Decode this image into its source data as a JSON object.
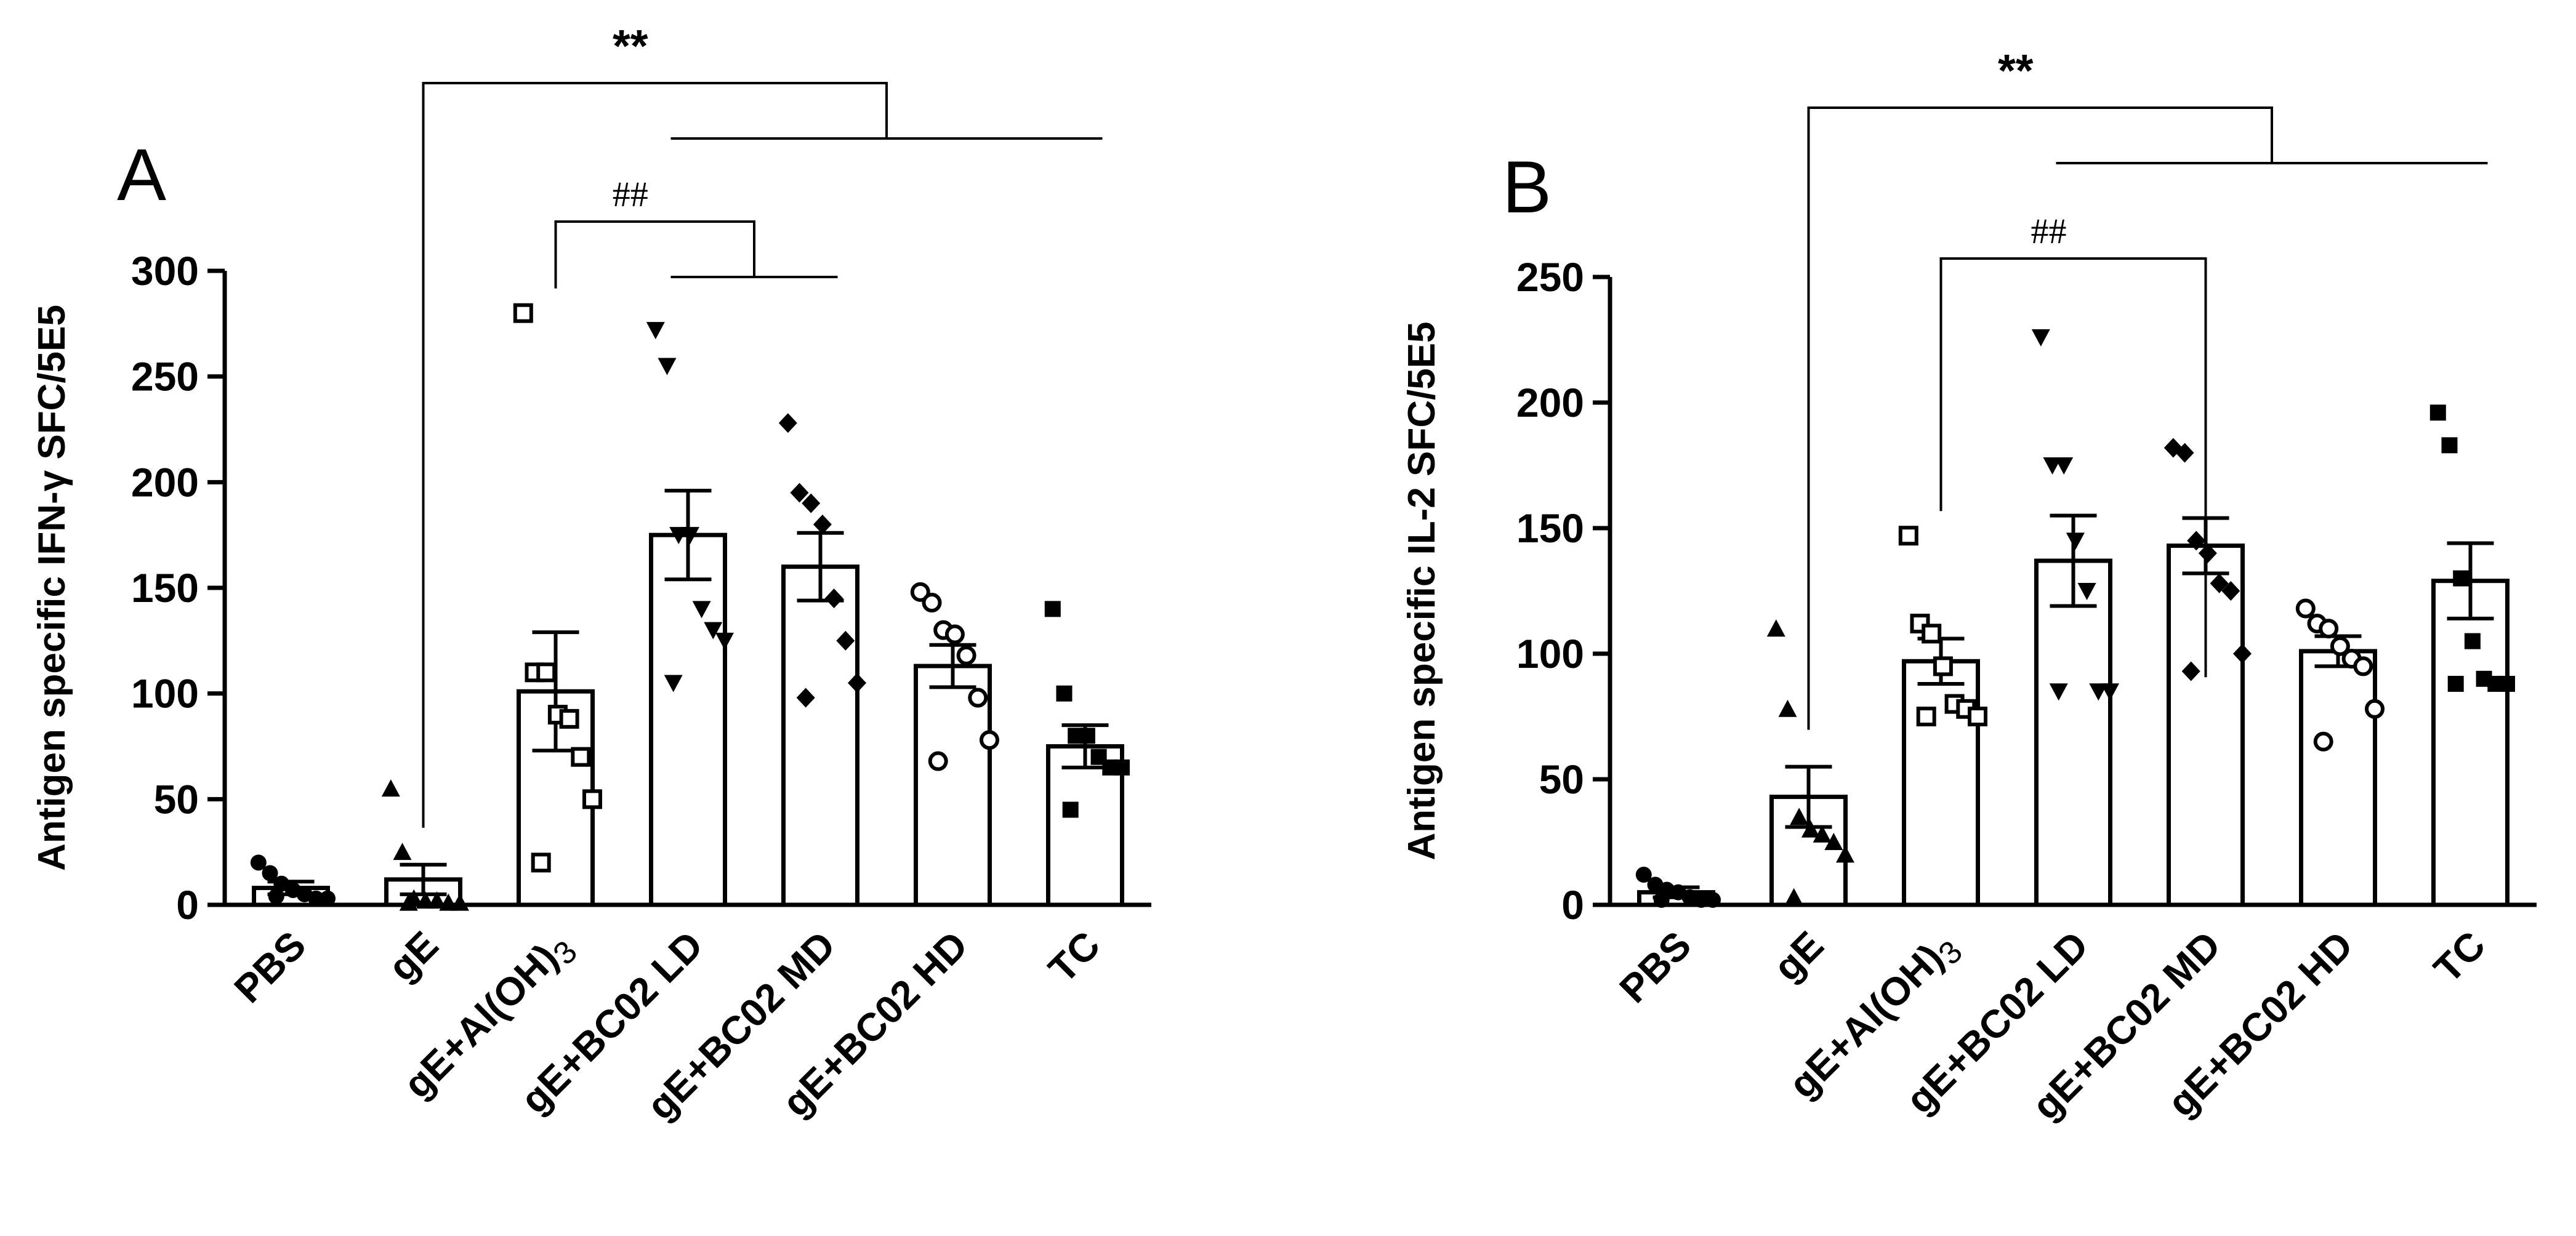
{
  "chart_data": [
    {
      "panel": "A",
      "type": "bar",
      "ylabel": "Antigen specific IFN-γ SFC/5E5",
      "ylim": [
        0,
        300
      ],
      "yticks": [
        0,
        50,
        100,
        150,
        200,
        250,
        300
      ],
      "categories": [
        {
          "label": "PBS"
        },
        {
          "label": "gE"
        },
        {
          "label": "gE+Al(OH)",
          "sub": "3"
        },
        {
          "label": "gE+BC02 LD"
        },
        {
          "label": "gE+BC02 MD"
        },
        {
          "label": "gE+BC02 HD"
        },
        {
          "label": "TC"
        }
      ],
      "means": [
        8,
        12,
        101,
        175,
        160,
        113,
        75
      ],
      "sem": [
        3,
        7,
        28,
        21,
        16,
        10,
        10
      ],
      "markers": [
        "circle",
        "triangle",
        "square-open",
        "triangle-down",
        "diamond",
        "circle-open",
        "square"
      ],
      "points": [
        [
          20,
          15,
          10,
          7,
          5,
          3,
          3,
          4
        ],
        [
          55,
          25,
          3,
          2,
          2,
          1,
          1,
          1
        ],
        [
          280,
          110,
          110,
          90,
          88,
          70,
          50,
          20
        ],
        [
          272,
          255,
          175,
          175,
          140,
          130,
          125,
          105
        ],
        [
          228,
          195,
          190,
          180,
          145,
          125,
          105,
          98
        ],
        [
          148,
          143,
          130,
          128,
          118,
          98,
          78,
          68
        ],
        [
          140,
          100,
          80,
          80,
          70,
          65,
          65,
          45
        ]
      ],
      "significance": [
        {
          "label": "**",
          "from": 1,
          "to": [
            3,
            6
          ],
          "style": "star"
        },
        {
          "label": "##",
          "from": 2,
          "to": [
            3,
            4
          ],
          "style": "hash"
        }
      ]
    },
    {
      "panel": "B",
      "type": "bar",
      "ylabel": "Antigen specific IL-2 SFC/5E5",
      "ylim": [
        0,
        250
      ],
      "yticks": [
        0,
        50,
        100,
        150,
        200,
        250
      ],
      "categories": [
        {
          "label": "PBS"
        },
        {
          "label": "gE"
        },
        {
          "label": "gE+Al(OH)",
          "sub": "3"
        },
        {
          "label": "gE+BC02 LD"
        },
        {
          "label": "gE+BC02 MD"
        },
        {
          "label": "gE+BC02 HD"
        },
        {
          "label": "TC"
        }
      ],
      "means": [
        5,
        43,
        97,
        137,
        143,
        101,
        129
      ],
      "sem": [
        2,
        12,
        9,
        18,
        11,
        6,
        15
      ],
      "markers": [
        "circle",
        "triangle",
        "square-open",
        "triangle-down",
        "diamond",
        "circle-open",
        "square"
      ],
      "points": [
        [
          12,
          8,
          6,
          5,
          3,
          2,
          2,
          2
        ],
        [
          110,
          78,
          35,
          30,
          28,
          25,
          20,
          3
        ],
        [
          147,
          112,
          108,
          95,
          80,
          78,
          75,
          75
        ],
        [
          226,
          175,
          175,
          145,
          125,
          85,
          85,
          85
        ],
        [
          182,
          180,
          145,
          140,
          128,
          125,
          100,
          93
        ],
        [
          118,
          112,
          110,
          103,
          98,
          95,
          78,
          65
        ],
        [
          196,
          183,
          130,
          105,
          90,
          88,
          88,
          88
        ]
      ],
      "significance": [
        {
          "label": "**",
          "from": 1,
          "to": [
            3,
            6
          ],
          "style": "star"
        },
        {
          "label": "##",
          "from": 2,
          "to": [
            4
          ],
          "style": "hash"
        }
      ]
    }
  ]
}
